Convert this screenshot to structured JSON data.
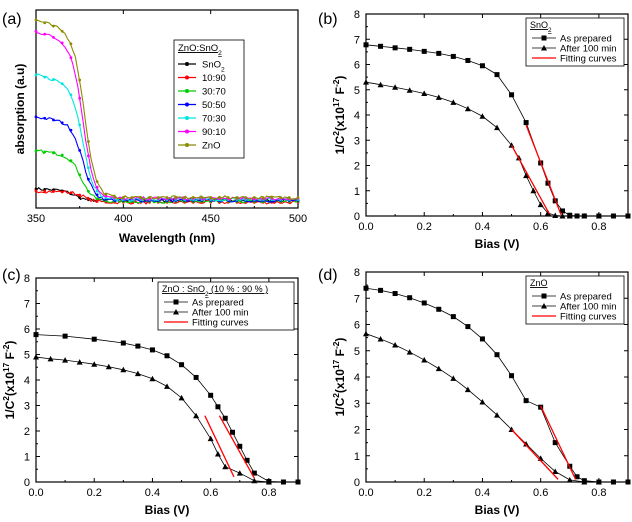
{
  "chart_data": [
    {
      "panel": "(a)",
      "type": "line",
      "xlabel": "Wavelength (nm)",
      "ylabel": "absorption (a.u)",
      "xlim": [
        350,
        500
      ],
      "ylim": [
        0,
        1
      ],
      "xticks": [
        350,
        400,
        450,
        500
      ],
      "yticks_shown": false,
      "legend_title": "ZnO:SnO2",
      "legend_position": "top-right",
      "series": [
        {
          "name": "SnO2",
          "color": "#000000",
          "plateau": 0.1,
          "edge": 372,
          "tail": 0.04
        },
        {
          "name": "10:90",
          "color": "#ff0000",
          "plateau": 0.09,
          "edge": 378,
          "tail": 0.03
        },
        {
          "name": "30:70",
          "color": "#00cc00",
          "plateau": 0.3,
          "edge": 376,
          "tail": 0.035
        },
        {
          "name": "50:50",
          "color": "#0000ff",
          "plateau": 0.48,
          "edge": 377,
          "tail": 0.04
        },
        {
          "name": "70:30",
          "color": "#00e5e5",
          "plateau": 0.7,
          "edge": 377,
          "tail": 0.045
        },
        {
          "name": "90:10",
          "color": "#ff00ff",
          "plateau": 0.93,
          "edge": 377,
          "tail": 0.05
        },
        {
          "name": "ZnO",
          "color": "#8b8b00",
          "plateau": 0.99,
          "edge": 378,
          "tail": 0.055
        }
      ]
    },
    {
      "panel": "(b)",
      "type": "line",
      "xlabel": "Bias (V)",
      "ylabel": "1/C2(x1017 F-2)",
      "xlim": [
        0.0,
        0.9
      ],
      "ylim": [
        0,
        8
      ],
      "xticks": [
        "0.0",
        "0.2",
        "0.4",
        "0.6",
        "0.8"
      ],
      "yticks": [
        "0",
        "1",
        "2",
        "3",
        "4",
        "5",
        "6",
        "7",
        "8"
      ],
      "legend_title": "SnO2",
      "legend_position": "top-right",
      "series": [
        {
          "name": "As prepared",
          "marker": "square",
          "x": [
            0.0,
            0.05,
            0.1,
            0.15,
            0.2,
            0.25,
            0.3,
            0.35,
            0.4,
            0.45,
            0.5,
            0.55,
            0.6,
            0.625,
            0.65,
            0.675,
            0.7,
            0.725,
            0.75,
            0.8,
            0.85,
            0.9
          ],
          "y": [
            6.78,
            6.72,
            6.66,
            6.6,
            6.52,
            6.44,
            6.32,
            6.16,
            5.95,
            5.6,
            4.8,
            3.7,
            2.1,
            1.3,
            0.6,
            0.2,
            0.03,
            0.0,
            0.0,
            0.0,
            0.0,
            0.0
          ]
        },
        {
          "name": "After 100 min",
          "marker": "triangle",
          "x": [
            0.0,
            0.05,
            0.1,
            0.15,
            0.2,
            0.25,
            0.3,
            0.35,
            0.4,
            0.45,
            0.5,
            0.525,
            0.55,
            0.575,
            0.6,
            0.625,
            0.65,
            0.675,
            0.7,
            0.75,
            0.8
          ],
          "y": [
            5.3,
            5.2,
            5.1,
            4.98,
            4.85,
            4.7,
            4.5,
            4.25,
            3.95,
            3.5,
            2.8,
            2.3,
            1.6,
            1.0,
            0.45,
            0.12,
            0.02,
            0.0,
            0.0,
            0.0,
            0.0
          ]
        },
        {
          "name": "Fitting curves",
          "color": "#ff0000",
          "segments": [
            [
              [
                0.55,
                3.6
              ],
              [
                0.67,
                0.05
              ]
            ],
            [
              [
                0.5,
                2.8
              ],
              [
                0.63,
                0.08
              ]
            ]
          ]
        }
      ]
    },
    {
      "panel": "(c)",
      "type": "line",
      "xlabel": "Bias (V)",
      "ylabel": "1/C2(x1017 F-2)",
      "xlim": [
        0.0,
        0.9
      ],
      "ylim": [
        0,
        8
      ],
      "xticks": [
        "0.0",
        "0.2",
        "0.4",
        "0.6",
        "0.8"
      ],
      "yticks": [
        "0",
        "1",
        "2",
        "3",
        "4",
        "5",
        "6",
        "7",
        "8"
      ],
      "legend_title": "ZnO : SnO2  (10 % : 90 % )",
      "legend_position": "top-right",
      "series": [
        {
          "name": "As prepared",
          "marker": "square",
          "x": [
            0.0,
            0.1,
            0.2,
            0.3,
            0.35,
            0.4,
            0.45,
            0.5,
            0.55,
            0.6,
            0.625,
            0.65,
            0.675,
            0.7,
            0.725,
            0.75,
            0.8,
            0.85,
            0.9
          ],
          "y": [
            5.78,
            5.72,
            5.6,
            5.45,
            5.33,
            5.18,
            4.95,
            4.6,
            4.1,
            3.4,
            2.95,
            2.5,
            1.95,
            1.4,
            0.85,
            0.35,
            0.02,
            0.0,
            0.0
          ]
        },
        {
          "name": "After 100 min",
          "marker": "triangle",
          "x": [
            0.0,
            0.05,
            0.1,
            0.15,
            0.2,
            0.25,
            0.3,
            0.35,
            0.4,
            0.45,
            0.5,
            0.55,
            0.6,
            0.625,
            0.65,
            0.7,
            0.75,
            0.8
          ],
          "y": [
            4.9,
            4.83,
            4.78,
            4.7,
            4.62,
            4.52,
            4.4,
            4.25,
            4.05,
            3.75,
            3.3,
            2.6,
            1.7,
            1.1,
            0.6,
            0.35,
            0.05,
            0.0
          ]
        },
        {
          "name": "Fitting curves",
          "color": "#ff0000",
          "segments": [
            [
              [
                0.63,
                2.6
              ],
              [
                0.75,
                0.15
              ]
            ],
            [
              [
                0.58,
                2.6
              ],
              [
                0.68,
                0.2
              ]
            ]
          ]
        }
      ]
    },
    {
      "panel": "(d)",
      "type": "line",
      "xlabel": "Bias (V)",
      "ylabel": "1/C2(x1017 F-2)",
      "xlim": [
        0.0,
        0.9
      ],
      "ylim": [
        0,
        8
      ],
      "xticks": [
        "0.0",
        "0.2",
        "0.4",
        "0.6",
        "0.8"
      ],
      "yticks": [
        "0",
        "1",
        "2",
        "3",
        "4",
        "5",
        "6",
        "7",
        "8"
      ],
      "legend_title": "ZnO",
      "legend_position": "top-right",
      "series": [
        {
          "name": "As prepared",
          "marker": "square",
          "x": [
            0.0,
            0.05,
            0.1,
            0.15,
            0.2,
            0.25,
            0.3,
            0.35,
            0.4,
            0.45,
            0.5,
            0.55,
            0.6,
            0.65,
            0.7,
            0.725,
            0.75,
            0.8,
            0.85,
            0.9
          ],
          "y": [
            7.38,
            7.3,
            7.18,
            7.02,
            6.82,
            6.58,
            6.3,
            5.92,
            5.45,
            4.85,
            4.05,
            3.1,
            2.85,
            1.5,
            0.6,
            0.2,
            0.05,
            0.0,
            0.0,
            0.0
          ]
        },
        {
          "name": "After 100 min",
          "marker": "triangle",
          "x": [
            0.0,
            0.05,
            0.1,
            0.15,
            0.2,
            0.25,
            0.3,
            0.35,
            0.4,
            0.45,
            0.5,
            0.55,
            0.6,
            0.65,
            0.7,
            0.75,
            0.8
          ],
          "y": [
            5.65,
            5.45,
            5.22,
            4.95,
            4.65,
            4.32,
            3.95,
            3.52,
            3.05,
            2.55,
            2.0,
            1.45,
            0.9,
            0.4,
            0.08,
            0.0,
            0.0
          ]
        },
        {
          "name": "Fitting curves",
          "color": "#ff0000",
          "segments": [
            [
              [
                0.6,
                2.9
              ],
              [
                0.72,
                0.1
              ]
            ],
            [
              [
                0.5,
                2.0
              ],
              [
                0.66,
                0.1
              ]
            ]
          ]
        }
      ]
    }
  ]
}
